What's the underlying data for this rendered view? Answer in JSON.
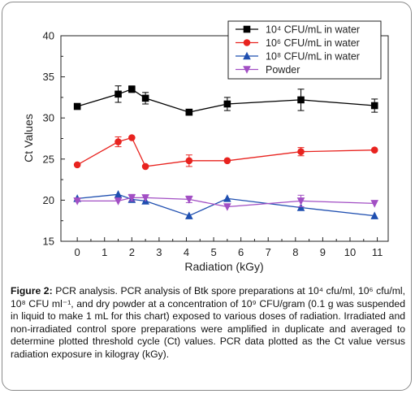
{
  "chart_data": {
    "type": "line",
    "xlabel": "Radiation (kGy)",
    "ylabel": "Ct Values",
    "xlim": [
      -0.6,
      11.4
    ],
    "ylim": [
      15,
      40
    ],
    "xticks": [
      0,
      1,
      2,
      3,
      4,
      5,
      6,
      7,
      8,
      9,
      10,
      11
    ],
    "yticks": [
      15,
      20,
      25,
      30,
      35,
      40
    ],
    "grid": false,
    "legend_position": "top-right",
    "series": [
      {
        "name": "10⁴ CFU/mL in water",
        "color": "#000000",
        "marker": "square",
        "x": [
          0,
          1.5,
          2,
          2.5,
          4.1,
          5.5,
          8.2,
          10.9
        ],
        "y": [
          31.4,
          32.9,
          33.5,
          32.4,
          30.7,
          31.7,
          32.2,
          31.5
        ],
        "err": [
          0,
          1.0,
          0.4,
          0.7,
          0,
          0.8,
          1.3,
          0.8
        ]
      },
      {
        "name": "10⁶ CFU/mL in water",
        "color": "#e8231f",
        "marker": "circle",
        "x": [
          0,
          1.5,
          2,
          2.5,
          4.1,
          5.5,
          8.2,
          10.9
        ],
        "y": [
          24.3,
          27.1,
          27.6,
          24.1,
          24.8,
          24.8,
          25.9,
          26.1
        ],
        "err": [
          0,
          0.6,
          0,
          0,
          0.7,
          0,
          0.5,
          0
        ]
      },
      {
        "name": "10⁸ CFU/mL in water",
        "color": "#1f4fb0",
        "marker": "triangle-up",
        "x": [
          0,
          1.5,
          2,
          2.5,
          4.1,
          5.5,
          8.2,
          10.9
        ],
        "y": [
          20.2,
          20.7,
          20.1,
          19.9,
          18.1,
          20.2,
          19.1,
          18.1
        ],
        "err": [
          0,
          0,
          0,
          0,
          0,
          0,
          0,
          0
        ]
      },
      {
        "name": "Powder",
        "color": "#a24fc4",
        "marker": "triangle-down",
        "x": [
          0,
          1.5,
          2,
          2.5,
          4.1,
          5.5,
          8.2,
          10.9
        ],
        "y": [
          19.9,
          19.9,
          20.3,
          20.3,
          20.1,
          19.2,
          19.9,
          19.6
        ],
        "err": [
          0,
          0,
          0.4,
          0,
          0.4,
          0,
          0.7,
          0
        ]
      }
    ]
  },
  "caption": {
    "label": "Figure 2:",
    "text": "PCR analysis. PCR analysis of Btk spore preparations at 10⁴ cfu/ml, 10⁶ cfu/ml, 10⁸ CFU ml⁻¹, and dry powder at a concentration of 10⁹ CFU/gram (0.1 g was suspended in liquid to make 1 mL for this chart) exposed to various doses of radiation. Irradiated and non-irradiated control spore preparations were amplified in duplicate and averaged to determine plotted threshold cycle (Ct) values. PCR data plotted as the Ct value versus radiation exposure in kilogray (kGy)."
  }
}
